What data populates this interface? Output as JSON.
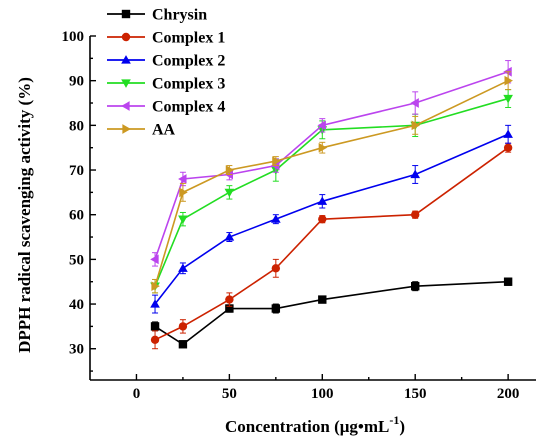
{
  "chart_data": {
    "type": "line",
    "xlabel": "Concentration (μg•mL",
    "xlabel_sup": "-1",
    "xlabel_close": ")",
    "ylabel": "DPPH radical scavenging activity (%)",
    "xlim": [
      -25,
      215
    ],
    "ylim": [
      23,
      100
    ],
    "xticks": [
      0,
      50,
      100,
      150,
      200
    ],
    "yticks": [
      30,
      40,
      50,
      60,
      70,
      80,
      90,
      100
    ],
    "x": [
      10,
      25,
      50,
      75,
      100,
      150,
      200
    ],
    "legend_position": "top-left",
    "series": [
      {
        "name": "Chrysin",
        "color": "#000000",
        "marker": "square",
        "values": [
          35,
          31,
          39,
          39,
          41,
          44,
          45
        ],
        "errors": [
          1,
          0.5,
          0.8,
          1,
          0.6,
          1,
          0.8
        ]
      },
      {
        "name": "Complex 1",
        "color": "#cc2200",
        "marker": "circle",
        "values": [
          32,
          35,
          41,
          48,
          59,
          60,
          75
        ],
        "errors": [
          2,
          1.5,
          1.5,
          2,
          0.8,
          0.8,
          1
        ]
      },
      {
        "name": "Complex 2",
        "color": "#0000ee",
        "marker": "triangle-up",
        "values": [
          40,
          48,
          55,
          59,
          63,
          69,
          78
        ],
        "errors": [
          2,
          1.2,
          1,
          1,
          1.5,
          2,
          2
        ]
      },
      {
        "name": "Complex 3",
        "color": "#22dd22",
        "marker": "triangle-down",
        "values": [
          44,
          59,
          65,
          70,
          79,
          80,
          86
        ],
        "errors": [
          1.5,
          1.5,
          1.5,
          2.5,
          2,
          2.5,
          2
        ]
      },
      {
        "name": "Complex 4",
        "color": "#bb44ee",
        "marker": "triangle-left",
        "values": [
          50,
          68,
          69,
          71,
          80,
          85,
          92
        ],
        "errors": [
          1.5,
          1.5,
          1.2,
          1.5,
          1.5,
          2.5,
          2.5
        ]
      },
      {
        "name": "AA",
        "color": "#cc9922",
        "marker": "triangle-right",
        "values": [
          44,
          65,
          70,
          72,
          75,
          80,
          90
        ],
        "errors": [
          1.5,
          2,
          1,
          1,
          1.2,
          2,
          2
        ]
      }
    ]
  }
}
